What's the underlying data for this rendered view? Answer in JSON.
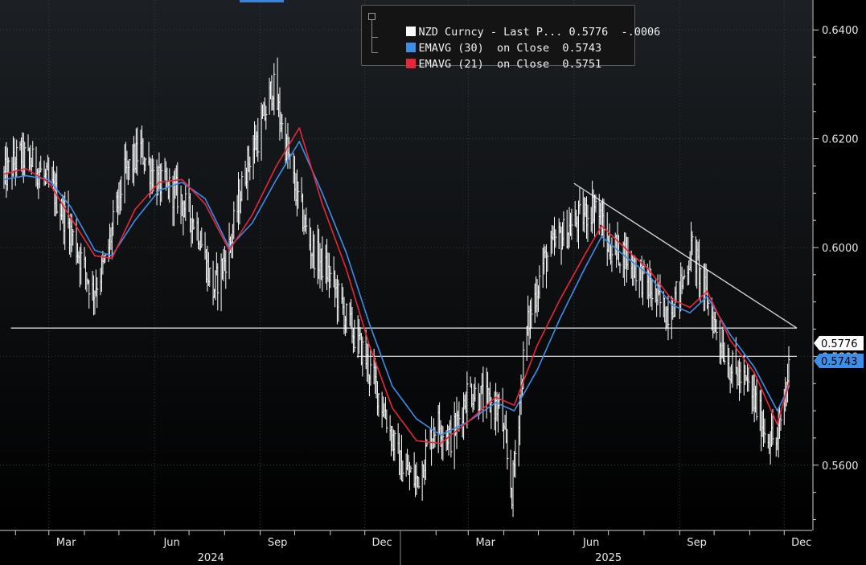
{
  "legend": {
    "items": [
      {
        "label": "NZD Curncy - Last P... 0.5776  -.0006",
        "color": "#ffffff"
      },
      {
        "label": "EMAVG (30)  on Close  0.5743",
        "color": "#3d8ee8"
      },
      {
        "label": "EMAVG (21)  on Close  0.5751",
        "color": "#e8263a"
      }
    ]
  },
  "axis": {
    "y_ticks": [
      "0.6400",
      "0.6200",
      "0.6000",
      "0.5800",
      "0.5600"
    ],
    "x_months": [
      "Mar",
      "Jun",
      "Sep",
      "Dec",
      "Mar",
      "Jun",
      "Sep",
      "Dec"
    ],
    "x_years": [
      "2024",
      "2025"
    ]
  },
  "price_tags": {
    "last": "0.5776",
    "ema30": "0.5743"
  },
  "colors": {
    "background_top": "#1c2024",
    "background_bottom": "#000000",
    "price": "#ffffff",
    "ema30": "#3d8ee8",
    "ema21": "#e8263a",
    "lines": "#d8d8d8"
  },
  "chart_data": {
    "type": "line",
    "title": "",
    "ylim": [
      0.548,
      0.6455
    ],
    "x_range": [
      "2024-01-22",
      "2025-12-05"
    ],
    "series": [
      {
        "name": "NZD Curncy - Last P...",
        "style": "daily high-low bars",
        "x": [
          "2024-01-22",
          "2024-02-05",
          "2024-02-19",
          "2024-03-06",
          "2024-03-20",
          "2024-04-08",
          "2024-04-19",
          "2024-05-05",
          "2024-05-20",
          "2024-06-03",
          "2024-06-20",
          "2024-07-08",
          "2024-07-22",
          "2024-08-05",
          "2024-08-20",
          "2024-09-02",
          "2024-09-12",
          "2024-09-30",
          "2024-10-15",
          "2024-10-31",
          "2024-11-15",
          "2024-12-01",
          "2024-12-15",
          "2025-01-01",
          "2025-01-15",
          "2025-02-01",
          "2025-02-15",
          "2025-03-01",
          "2025-03-15",
          "2025-03-29",
          "2025-04-08",
          "2025-04-20",
          "2025-05-05",
          "2025-05-20",
          "2025-06-05",
          "2025-06-20",
          "2025-07-01",
          "2025-07-15",
          "2025-08-01",
          "2025-08-20",
          "2025-09-01",
          "2025-09-12",
          "2025-09-28",
          "2025-10-15",
          "2025-11-01",
          "2025-11-15",
          "2025-11-25",
          "2025-12-05"
        ],
        "y": [
          0.613,
          0.617,
          0.615,
          0.61,
          0.603,
          0.592,
          0.597,
          0.613,
          0.618,
          0.612,
          0.61,
          0.604,
          0.592,
          0.6,
          0.615,
          0.622,
          0.63,
          0.612,
          0.6,
          0.595,
          0.587,
          0.58,
          0.572,
          0.56,
          0.557,
          0.568,
          0.565,
          0.574,
          0.572,
          0.57,
          0.555,
          0.584,
          0.597,
          0.602,
          0.605,
          0.608,
          0.6,
          0.599,
          0.594,
          0.588,
          0.592,
          0.6,
          0.588,
          0.578,
          0.574,
          0.566,
          0.564,
          0.5776
        ]
      },
      {
        "name": "EMAVG (30)",
        "x": [
          "2024-01-22",
          "2024-02-10",
          "2024-03-01",
          "2024-03-20",
          "2024-04-10",
          "2024-04-25",
          "2024-05-15",
          "2024-06-05",
          "2024-06-25",
          "2024-07-15",
          "2024-08-05",
          "2024-08-25",
          "2024-09-15",
          "2024-10-05",
          "2024-10-25",
          "2024-11-15",
          "2024-12-05",
          "2024-12-25",
          "2025-01-15",
          "2025-02-05",
          "2025-03-01",
          "2025-03-25",
          "2025-04-10",
          "2025-04-30",
          "2025-05-20",
          "2025-06-10",
          "2025-06-25",
          "2025-07-15",
          "2025-08-05",
          "2025-08-25",
          "2025-09-10",
          "2025-09-25",
          "2025-10-15",
          "2025-11-05",
          "2025-11-25",
          "2025-12-05"
        ],
        "y": [
          0.6125,
          0.6132,
          0.6125,
          0.6075,
          0.5995,
          0.5985,
          0.605,
          0.6105,
          0.612,
          0.609,
          0.6,
          0.6045,
          0.6125,
          0.6195,
          0.61,
          0.599,
          0.586,
          0.5745,
          0.5685,
          0.5655,
          0.568,
          0.5715,
          0.57,
          0.5775,
          0.587,
          0.596,
          0.602,
          0.5985,
          0.595,
          0.5895,
          0.588,
          0.591,
          0.584,
          0.578,
          0.57,
          0.5743
        ]
      },
      {
        "name": "EMAVG (21)",
        "x": [
          "2024-01-22",
          "2024-02-10",
          "2024-03-01",
          "2024-03-20",
          "2024-04-10",
          "2024-04-25",
          "2024-05-15",
          "2024-06-05",
          "2024-06-25",
          "2024-07-15",
          "2024-08-05",
          "2024-08-25",
          "2024-09-15",
          "2024-10-05",
          "2024-10-25",
          "2024-11-15",
          "2024-12-05",
          "2024-12-25",
          "2025-01-15",
          "2025-02-05",
          "2025-03-01",
          "2025-03-25",
          "2025-04-10",
          "2025-04-30",
          "2025-05-20",
          "2025-06-10",
          "2025-06-25",
          "2025-07-15",
          "2025-08-05",
          "2025-08-25",
          "2025-09-10",
          "2025-09-25",
          "2025-10-15",
          "2025-11-05",
          "2025-11-25",
          "2025-12-05"
        ],
        "y": [
          0.6135,
          0.6145,
          0.612,
          0.6055,
          0.5985,
          0.598,
          0.607,
          0.612,
          0.6125,
          0.608,
          0.5995,
          0.606,
          0.615,
          0.622,
          0.608,
          0.596,
          0.582,
          0.5705,
          0.5645,
          0.564,
          0.568,
          0.5725,
          0.571,
          0.582,
          0.5905,
          0.5985,
          0.604,
          0.6,
          0.596,
          0.5905,
          0.589,
          0.592,
          0.583,
          0.577,
          0.5675,
          0.5751
        ]
      }
    ],
    "trend_lines": [
      {
        "x": [
          "2025-06-01",
          "2025-12-12"
        ],
        "y": [
          0.6118,
          0.5852
        ]
      },
      {
        "x": [
          "2024-01-28",
          "2025-12-12"
        ],
        "y": [
          0.5852,
          0.5852
        ]
      },
      {
        "x": [
          "2024-11-24",
          "2025-12-12"
        ],
        "y": [
          0.58,
          0.58
        ]
      }
    ]
  }
}
